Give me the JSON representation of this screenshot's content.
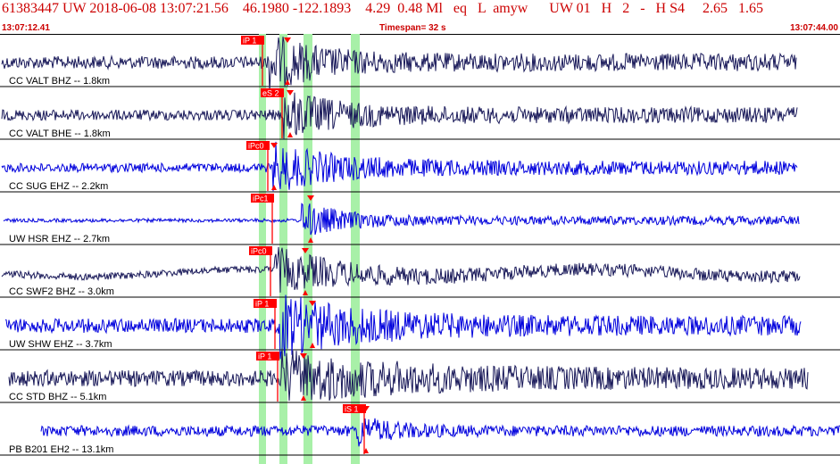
{
  "header": {
    "title_line": "61383447 UW 2018-06-08 13:07:21.56    46.1980 -122.1893    4.29  0.48 Ml   eq   L  amyw      UW 01   H   2   -   H S4     2.65   1.65",
    "start_time": "13:07:12.41",
    "timespan": "Timespan=  32 s",
    "end_time": "13:07:44.00"
  },
  "colors": {
    "header_text": "#cc0000",
    "trace_dark": "#1a1a5a",
    "trace_blue": "#0000dd",
    "pick": "#ff0000",
    "window": "#a8f0a8"
  },
  "traces": [
    {
      "label": "CC VALT BHZ -- 1.8km",
      "pick": "iP 1",
      "color": "dark"
    },
    {
      "label": "CC VALT BHE -- 1.8km",
      "pick": "eS 2",
      "color": "dark"
    },
    {
      "label": "CC SUG EHZ -- 2.2km",
      "pick": "iPc0",
      "color": "blue"
    },
    {
      "label": "UW HSR EHZ -- 2.7km",
      "pick": "iPc1",
      "color": "blue"
    },
    {
      "label": "CC SWF2 BHZ -- 3.0km",
      "pick": "iPc0",
      "color": "dark"
    },
    {
      "label": "UW SHW EHZ -- 3.7km",
      "pick": "iP 1",
      "color": "blue"
    },
    {
      "label": "CC STD BHZ -- 5.1km",
      "pick": "iP 1",
      "color": "dark"
    },
    {
      "label": "PB B201 EH2 -- 13.1km",
      "pick": "iS 1",
      "color": "blue"
    }
  ]
}
